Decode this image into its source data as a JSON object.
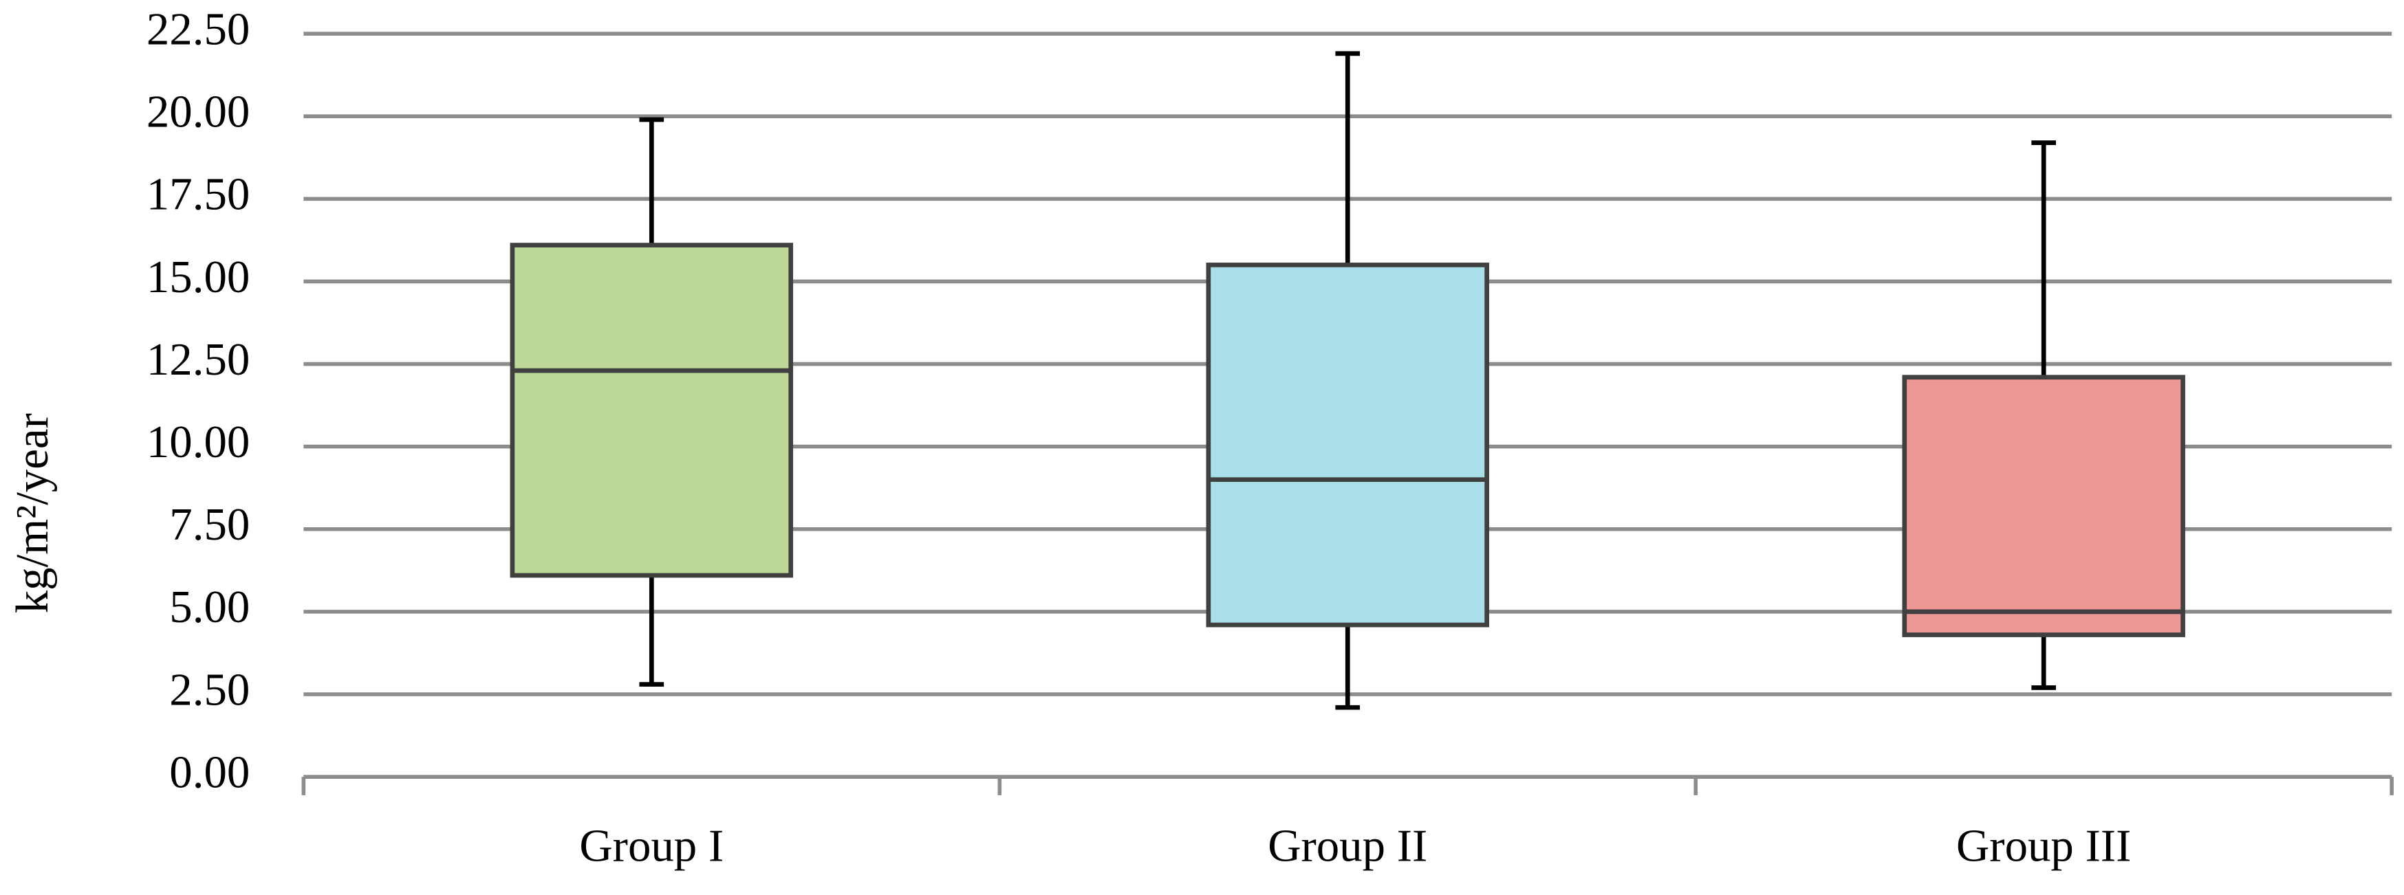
{
  "chart_data": {
    "type": "box",
    "y_label": "kg/m²/year",
    "categories": [
      "Group I",
      "Group II",
      "Group III"
    ],
    "boxes": [
      {
        "min": 2.8,
        "q1": 6.1,
        "median": 12.3,
        "q3": 16.1,
        "max": 19.9,
        "color": "#bdd898"
      },
      {
        "min": 2.1,
        "q1": 4.6,
        "median": 9.0,
        "q3": 15.5,
        "max": 21.9,
        "color": "#a8dfe9"
      },
      {
        "min": 2.7,
        "q1": 4.3,
        "median": 5.0,
        "q3": 12.1,
        "max": 19.2,
        "color": "#ee9895"
      }
    ],
    "ylim": [
      0,
      22.5
    ],
    "yticks": [
      {
        "value": 0,
        "label": "0.00"
      },
      {
        "value": 2.5,
        "label": "2.50"
      },
      {
        "value": 5,
        "label": "5.00"
      },
      {
        "value": 7.5,
        "label": "7.50"
      },
      {
        "value": 10,
        "label": "10.00"
      },
      {
        "value": 12.5,
        "label": "12.50"
      },
      {
        "value": 15,
        "label": "15.00"
      },
      {
        "value": 17.5,
        "label": "17.50"
      },
      {
        "value": 20,
        "label": "20.00"
      },
      {
        "value": 22.5,
        "label": "22.50"
      }
    ],
    "grid": true
  }
}
